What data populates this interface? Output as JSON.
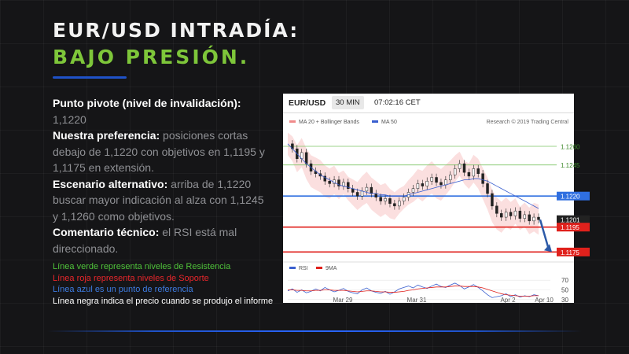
{
  "slide": {
    "title_line1": "EUR/USD INTRADÍA:",
    "title_line2": "BAJO PRESIÓN."
  },
  "analysis": {
    "pivot_label": "Punto pivote (nivel de invalidación):",
    "pivot_value": " 1,1220",
    "preference_label": "Nuestra preferencia:",
    "preference_text": " posiciones cortas debajo de 1,1220 con objetivos en 1,1195 y 1,1175 en extensión.",
    "alternative_label": "Escenario alternativo:",
    "alternative_text": " arriba de 1,1220 buscar mayor indicación al alza con 1,1245 y 1,1260 como objetivos.",
    "comment_label": "Comentario técnico:",
    "comment_text": " el RSI está mal direccionado."
  },
  "legend": {
    "green": "Línea verde representa niveles de Resistencia",
    "red": "Línea roja representa niveles de Soporte",
    "blue": "Línea azul es un punto de referencia",
    "black": "Línea negra indica el precio cuando se produjo el informe",
    "green_color": "#4fc23a",
    "red_color": "#e8262b",
    "blue_color": "#3d7be0",
    "black_color": "#ffffff"
  },
  "chart_header": {
    "symbol": "EUR/USD",
    "timeframe": "30 MIN",
    "time": "07:02:16 CET"
  },
  "chart_data": {
    "type": "line",
    "price_legend": [
      "MA 20 + Bollinger Bands",
      "MA 50"
    ],
    "copyright": "Research © 2019 Trading Central",
    "levels": [
      {
        "value": 1.126,
        "label": "1.1260",
        "kind": "resistance",
        "color": "#7cc464"
      },
      {
        "value": 1.1245,
        "label": "1.1245",
        "kind": "resistance",
        "color": "#7cc464"
      },
      {
        "value": 1.122,
        "label": "1.1220",
        "kind": "pivot",
        "color": "#2f6fe0"
      },
      {
        "value": 1.1201,
        "label": "1.1201",
        "kind": "current",
        "color": "#222222"
      },
      {
        "value": 1.1195,
        "label": "1.1195",
        "kind": "support",
        "color": "#e0211c"
      },
      {
        "value": 1.1175,
        "label": "1.1175",
        "kind": "support",
        "color": "#e0211c"
      }
    ],
    "price": [
      1.1262,
      1.1258,
      1.125,
      1.1255,
      1.1246,
      1.124,
      1.1238,
      1.1236,
      1.1232,
      1.123,
      1.1233,
      1.1228,
      1.1231,
      1.1226,
      1.1223,
      1.122,
      1.1224,
      1.1227,
      1.1222,
      1.1219,
      1.1216,
      1.1218,
      1.1214,
      1.1212,
      1.1216,
      1.1219,
      1.1223,
      1.1226,
      1.123,
      1.1228,
      1.1232,
      1.1235,
      1.1231,
      1.1229,
      1.1233,
      1.1237,
      1.1242,
      1.1246,
      1.1239,
      1.1236,
      1.1242,
      1.1238,
      1.123,
      1.1222,
      1.1212,
      1.1206,
      1.1203,
      1.1207,
      1.1204,
      1.1208,
      1.1202,
      1.1205,
      1.12,
      1.1203,
      1.1201
    ],
    "ma50": [
      1.1262,
      1.1258,
      1.1254,
      1.125,
      1.1246,
      1.1243,
      1.124,
      1.1237,
      1.1235,
      1.1233,
      1.1231,
      1.1229,
      1.1228,
      1.1227,
      1.1226,
      1.1225,
      1.1224,
      1.1223,
      1.1222,
      1.1222,
      1.1221,
      1.1221,
      1.122,
      1.122,
      1.122,
      1.122,
      1.1221,
      1.1222,
      1.1223,
      1.1224,
      1.1225,
      1.1226,
      1.1227,
      1.1228,
      1.1229,
      1.123,
      1.1231,
      1.1232,
      1.1233,
      1.1233,
      1.1234,
      1.1234,
      1.1233,
      1.1232,
      1.123,
      1.1228,
      1.1226,
      1.1224,
      1.1222,
      1.122,
      1.1218,
      1.1216,
      1.1214,
      1.1212,
      1.121
    ],
    "rsi_legend": [
      "RSI",
      "9MA"
    ],
    "rsi_ticks": [
      70,
      50,
      30
    ],
    "rsi": [
      48,
      52,
      45,
      50,
      44,
      47,
      52,
      48,
      55,
      50,
      46,
      49,
      53,
      47,
      44,
      42,
      50,
      54,
      48,
      45,
      43,
      47,
      41,
      46,
      52,
      55,
      58,
      54,
      60,
      56,
      53,
      58,
      62,
      57,
      55,
      60,
      64,
      59,
      52,
      56,
      61,
      55,
      48,
      40,
      34,
      36,
      38,
      42,
      36,
      40,
      35,
      38,
      36,
      40,
      38
    ],
    "rsi_ma": [
      50,
      50,
      49,
      49,
      48,
      48,
      49,
      49,
      50,
      50,
      49,
      49,
      49,
      48,
      47,
      46,
      47,
      48,
      48,
      47,
      46,
      46,
      45,
      45,
      46,
      47,
      49,
      50,
      52,
      53,
      54,
      55,
      56,
      56,
      56,
      57,
      58,
      58,
      57,
      57,
      57,
      56,
      54,
      51,
      48,
      45,
      42,
      40,
      39,
      38,
      37,
      37,
      37,
      38,
      38
    ],
    "ylim": [
      1.1167,
      1.1272
    ],
    "x_labels": [
      "Mar 29",
      "Mar 31",
      "Apr 2",
      "Apr 10"
    ]
  }
}
